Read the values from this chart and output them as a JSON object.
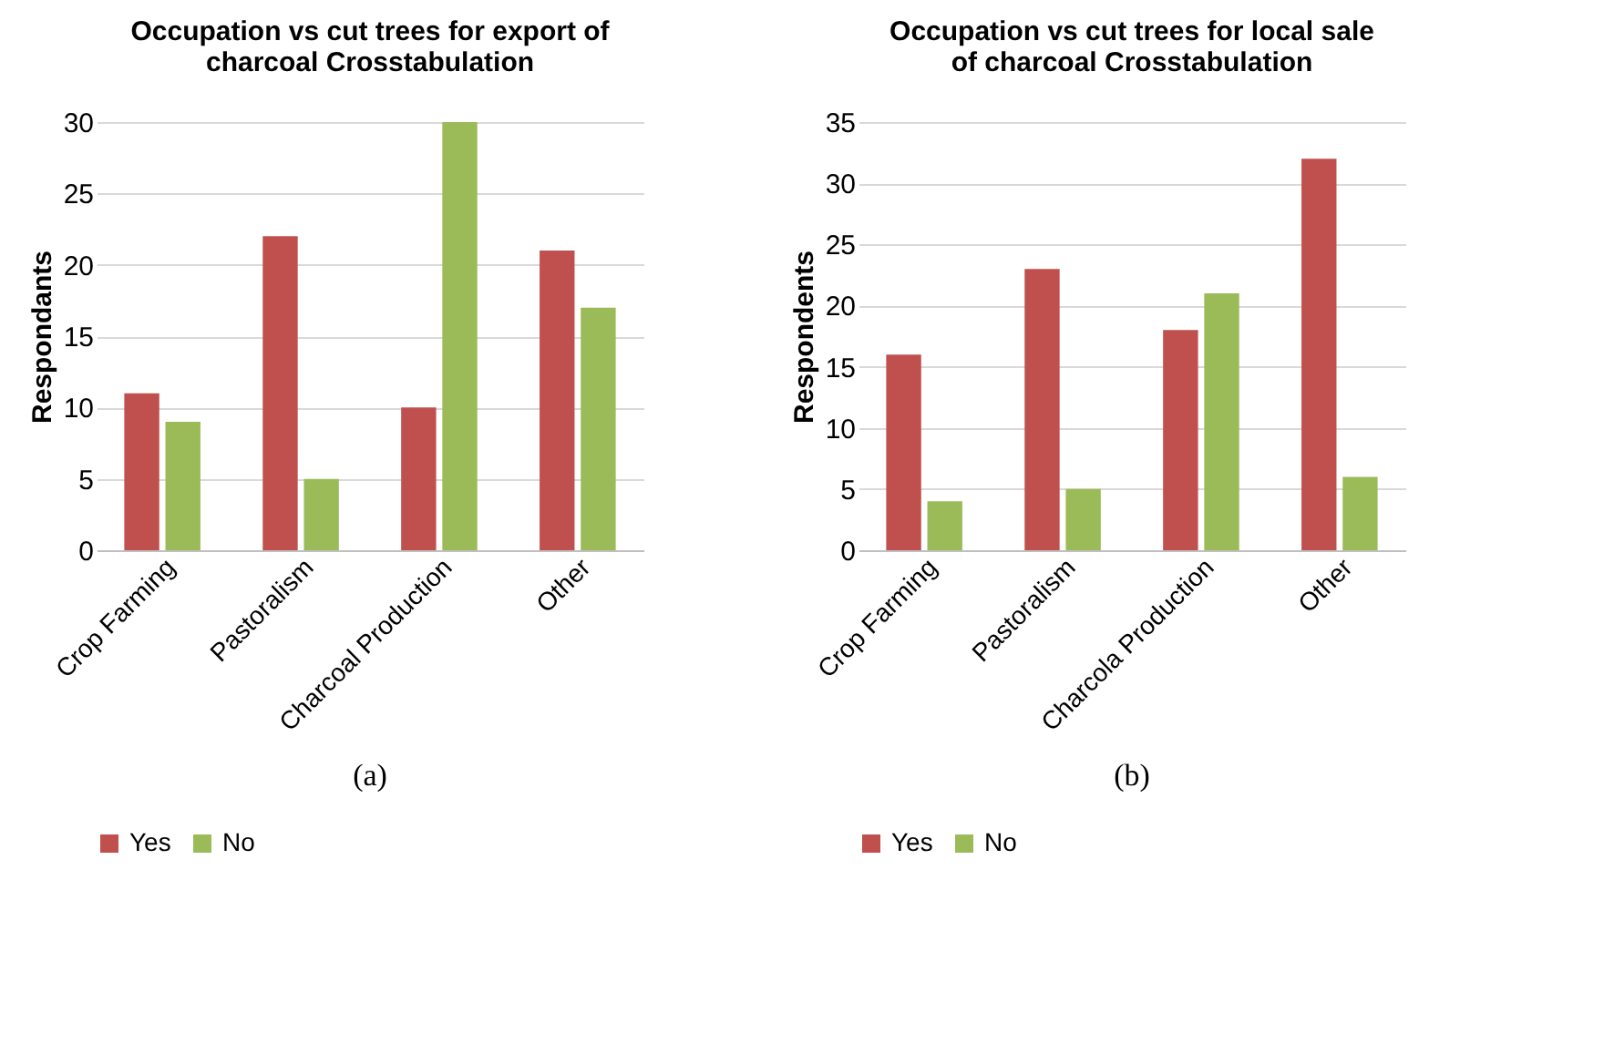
{
  "chart_data": [
    {
      "type": "bar",
      "title": "Occupation vs cut trees for export of charcoal Crosstabulation",
      "ylabel": "Respondants",
      "categories": [
        "Crop Farming",
        "Pastoralism",
        "Charcoal Production",
        "Other"
      ],
      "series": [
        {
          "name": "Yes",
          "color": "#c0504d",
          "values": [
            11,
            22,
            10,
            21
          ]
        },
        {
          "name": "No",
          "color": "#9bbb59",
          "values": [
            9,
            5,
            30,
            17
          ]
        }
      ],
      "ylim": [
        0,
        30
      ],
      "yticks": [
        0,
        5,
        10,
        15,
        20,
        25,
        30
      ],
      "grid": "y",
      "legend": "bottom",
      "annotations": [
        "(a)"
      ]
    },
    {
      "type": "bar",
      "title": "Occupation vs cut trees for local sale of charcoal Crosstabulation",
      "ylabel": "Respondents",
      "categories": [
        "Crop Farming",
        "Pastoralism",
        "Charcola Production",
        "Other"
      ],
      "series": [
        {
          "name": "Yes",
          "color": "#c0504d",
          "values": [
            16,
            23,
            18,
            32
          ]
        },
        {
          "name": "No",
          "color": "#9bbb59",
          "values": [
            4,
            5,
            21,
            6
          ]
        }
      ],
      "ylim": [
        0,
        35
      ],
      "yticks": [
        0,
        5,
        10,
        15,
        20,
        25,
        30,
        35
      ],
      "grid": "y",
      "legend": "bottom",
      "annotations": [
        "(b)"
      ]
    }
  ]
}
